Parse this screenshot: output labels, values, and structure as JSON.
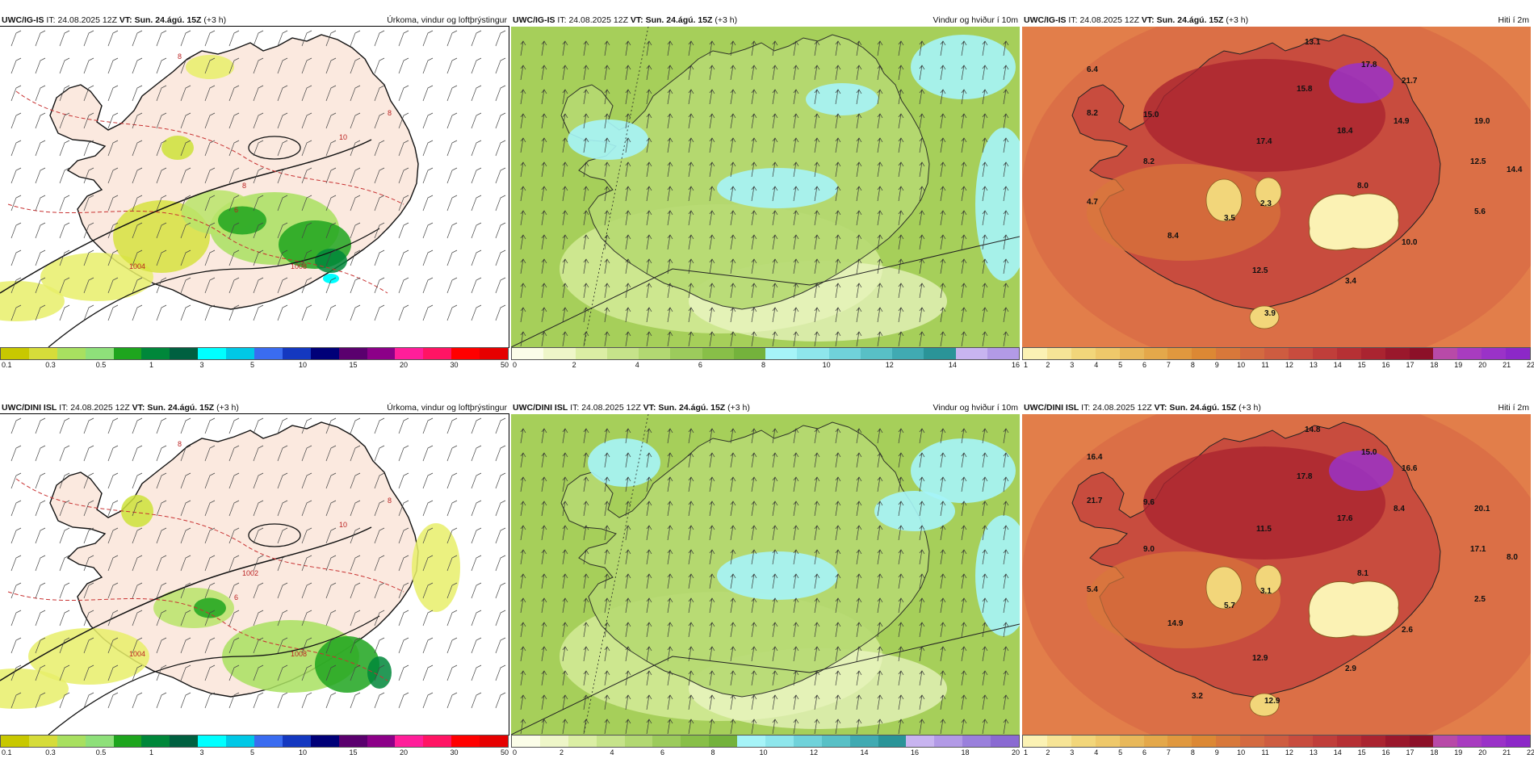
{
  "panels": [
    {
      "id": "p1",
      "model": "UWC/IG-IS",
      "it_label": "IT:",
      "it_value": "24.08.2025 12Z",
      "vt_label": "VT:",
      "vt_value": "Sun. 24.ágú. 15Z",
      "lead": "(+3 h)",
      "title": "Úrkoma, vindur og loftþrýstingur",
      "legend_colors": [
        "#c8c800",
        "#d6dc3a",
        "#a8e060",
        "#8ee07a",
        "#1ea51e",
        "#00873a",
        "#006040",
        "#00ffff",
        "#00c8e6",
        "#3a6cf0",
        "#1438c0",
        "#000078",
        "#5a006e",
        "#8c0088",
        "#ff1e9a",
        "#ff1464",
        "#ff0000",
        "#e60000"
      ],
      "legend_ticks": [
        "0.1",
        "0.3",
        "0.5",
        "1",
        "3",
        "5",
        "10",
        "15",
        "20",
        "30",
        "50"
      ],
      "map_labels": [
        "1004",
        "1008",
        "8",
        "8",
        "6",
        "10",
        "8"
      ]
    },
    {
      "id": "p2",
      "model": "UWC/IG-IS",
      "it_label": "IT:",
      "it_value": "24.08.2025 12Z",
      "vt_label": "VT:",
      "vt_value": "Sun. 24.ágú. 15Z",
      "lead": "(+3 h)",
      "title": "Vindur og hviður í 10m",
      "legend_colors": [
        "#fbfde8",
        "#eef6c8",
        "#dbeea4",
        "#c6e38a",
        "#b2d872",
        "#9ccb5c",
        "#88bf48",
        "#74b23c",
        "#a6f4f8",
        "#8ee6ec",
        "#70d2da",
        "#58c0c6",
        "#40aab2",
        "#2a9498",
        "#c8b4f0",
        "#b29ae6"
      ],
      "legend_ticks": [
        "0",
        "2",
        "4",
        "6",
        "8",
        "10",
        "12",
        "14",
        "16"
      ],
      "map_labels": []
    },
    {
      "id": "p3",
      "model": "UWC/IG-IS",
      "it_label": "IT:",
      "it_value": "24.08.2025 12Z",
      "vt_label": "VT:",
      "vt_value": "Sun. 24.ágú. 15Z",
      "lead": "(+3 h)",
      "title": "Hiti í 2m",
      "legend_colors": [
        "#fbf2b4",
        "#f6e496",
        "#f2d67a",
        "#eec86a",
        "#e8b85a",
        "#e4a84a",
        "#e0983e",
        "#dc8834",
        "#d8783a",
        "#d46a40",
        "#ce5c40",
        "#c84c3e",
        "#c03e3a",
        "#b63034",
        "#aa2430",
        "#9a182c",
        "#8c1028",
        "#b84aa8",
        "#a83cc0",
        "#9a32c8",
        "#8c28c8"
      ],
      "legend_ticks": [
        "1",
        "2",
        "3",
        "4",
        "5",
        "6",
        "7",
        "8",
        "9",
        "10",
        "11",
        "12",
        "13",
        "14",
        "15",
        "16",
        "17",
        "18",
        "19",
        "20",
        "21",
        "22"
      ],
      "temps": [
        {
          "v": "13.1"
        },
        {
          "v": "6.4"
        },
        {
          "v": "17.8"
        },
        {
          "v": "21.7"
        },
        {
          "v": "15.8"
        },
        {
          "v": "8.2"
        },
        {
          "v": "15.0"
        },
        {
          "v": "14.9"
        },
        {
          "v": "19.0"
        },
        {
          "v": "18.4"
        },
        {
          "v": "17.4"
        },
        {
          "v": "8.2"
        },
        {
          "v": "12.5"
        },
        {
          "v": "14.4"
        },
        {
          "v": "8.0"
        },
        {
          "v": "4.7"
        },
        {
          "v": "2.3"
        },
        {
          "v": "5.6"
        },
        {
          "v": "3.5"
        },
        {
          "v": "8.4"
        },
        {
          "v": "10.0"
        },
        {
          "v": "12.5"
        },
        {
          "v": "3.4"
        },
        {
          "v": "3.9"
        }
      ]
    },
    {
      "id": "p4",
      "model": "UWC/DINI ISL",
      "it_label": "IT:",
      "it_value": "24.08.2025 12Z",
      "vt_label": "VT:",
      "vt_value": "Sun. 24.ágú. 15Z",
      "lead": "(+3 h)",
      "title": "Úrkoma, vindur og loftþrýstingur",
      "legend_colors": [
        "#c8c800",
        "#d6dc3a",
        "#a8e060",
        "#8ee07a",
        "#1ea51e",
        "#00873a",
        "#006040",
        "#00ffff",
        "#00c8e6",
        "#3a6cf0",
        "#1438c0",
        "#000078",
        "#5a006e",
        "#8c0088",
        "#ff1e9a",
        "#ff1464",
        "#ff0000",
        "#e60000"
      ],
      "legend_ticks": [
        "0.1",
        "0.3",
        "0.5",
        "1",
        "3",
        "5",
        "10",
        "15",
        "20",
        "30",
        "50"
      ],
      "map_labels": [
        "1004",
        "1008",
        "1002",
        "8",
        "6",
        "10",
        "8"
      ]
    },
    {
      "id": "p5",
      "model": "UWC/DINI ISL",
      "it_label": "IT:",
      "it_value": "24.08.2025 12Z",
      "vt_label": "VT:",
      "vt_value": "Sun. 24.ágú. 15Z",
      "lead": "(+3 h)",
      "title": "Vindur og hviður í 10m",
      "legend_colors": [
        "#fbfde8",
        "#eef6c8",
        "#dbeea4",
        "#c6e38a",
        "#b2d872",
        "#9ccb5c",
        "#88bf48",
        "#74b23c",
        "#a6f4f8",
        "#8ee6ec",
        "#70d2da",
        "#58c0c6",
        "#40aab2",
        "#2a9498",
        "#c8b4f0",
        "#b29ae6",
        "#9a80dc",
        "#8a6ad2"
      ],
      "legend_ticks": [
        "0",
        "2",
        "4",
        "6",
        "8",
        "10",
        "12",
        "14",
        "16",
        "18",
        "20"
      ],
      "map_labels": []
    },
    {
      "id": "p6",
      "model": "UWC/DINI ISL",
      "it_label": "IT:",
      "it_value": "24.08.2025 12Z",
      "vt_label": "VT:",
      "vt_value": "Sun. 24.ágú. 15Z",
      "lead": "(+3 h)",
      "title": "Hiti í 2m",
      "legend_colors": [
        "#fbf2b4",
        "#f6e496",
        "#f2d67a",
        "#eec86a",
        "#e8b85a",
        "#e4a84a",
        "#e0983e",
        "#dc8834",
        "#d8783a",
        "#d46a40",
        "#ce5c40",
        "#c84c3e",
        "#c03e3a",
        "#b63034",
        "#aa2430",
        "#9a182c",
        "#8c1028",
        "#b84aa8",
        "#a83cc0",
        "#9a32c8",
        "#8c28c8"
      ],
      "legend_ticks": [
        "1",
        "2",
        "3",
        "4",
        "5",
        "6",
        "7",
        "8",
        "9",
        "10",
        "11",
        "12",
        "13",
        "14",
        "15",
        "16",
        "17",
        "18",
        "19",
        "20",
        "21",
        "22"
      ],
      "temps": [
        {
          "v": "14.8"
        },
        {
          "v": "16.4"
        },
        {
          "v": "15.0"
        },
        {
          "v": "16.6"
        },
        {
          "v": "17.8"
        },
        {
          "v": "21.7"
        },
        {
          "v": "9.6"
        },
        {
          "v": "8.4"
        },
        {
          "v": "20.1"
        },
        {
          "v": "17.6"
        },
        {
          "v": "11.5"
        },
        {
          "v": "9.0"
        },
        {
          "v": "17.1"
        },
        {
          "v": "8.0"
        },
        {
          "v": "8.1"
        },
        {
          "v": "5.4"
        },
        {
          "v": "3.1"
        },
        {
          "v": "2.5"
        },
        {
          "v": "5.7"
        },
        {
          "v": "14.9"
        },
        {
          "v": "2.6"
        },
        {
          "v": "12.9"
        },
        {
          "v": "2.9"
        },
        {
          "v": "12.9"
        },
        {
          "v": "3.2"
        }
      ]
    }
  ]
}
